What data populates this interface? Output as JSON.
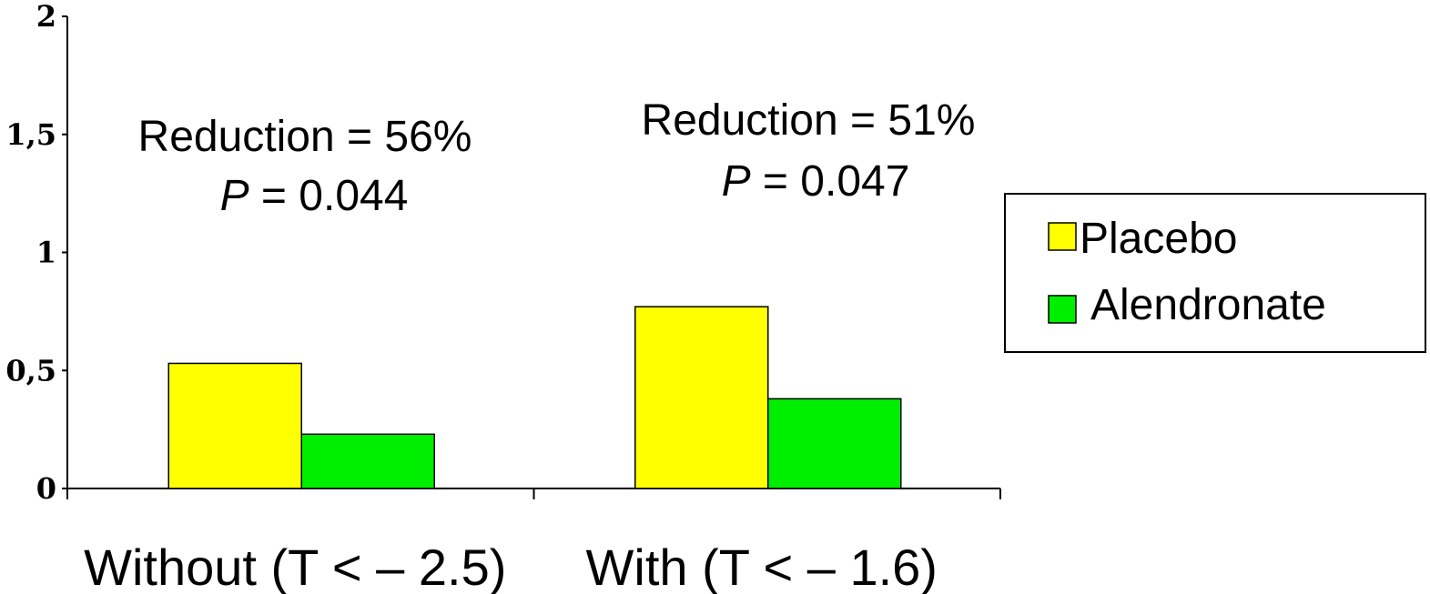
{
  "chart_data": {
    "type": "bar",
    "categories": [
      "Without (T < – 2.5)",
      "With (T < – 1.6)"
    ],
    "series": [
      {
        "name": "Placebo",
        "values": [
          0.53,
          0.77
        ],
        "color": "#ffff00"
      },
      {
        "name": "Alendronate",
        "values": [
          0.23,
          0.38
        ],
        "color": "#00ee00"
      }
    ],
    "yticks": [
      "0",
      "0,5",
      "1",
      "1,5",
      "2"
    ],
    "ylim": [
      0,
      2
    ],
    "grid": false,
    "legend": "right",
    "annotations": [
      {
        "line1": "Reduction = 56%",
        "p_label": "P",
        "p_value": " = 0.044"
      },
      {
        "line1": "Reduction = 51%",
        "p_label": "P",
        "p_value": " = 0.047"
      }
    ]
  }
}
